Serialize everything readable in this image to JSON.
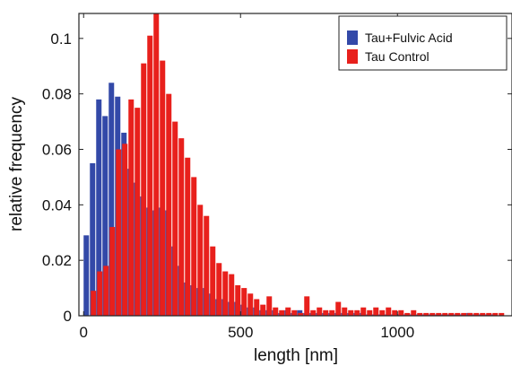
{
  "chart_data": {
    "type": "bar",
    "xlabel": "length [nm]",
    "ylabel": "relative frequency",
    "xlim": [
      -15,
      1365
    ],
    "ylim": [
      0,
      0.109
    ],
    "x_ticks": [
      0,
      500,
      1000
    ],
    "x_tick_labels": [
      "0",
      "500",
      "1000"
    ],
    "y_ticks": [
      0,
      0.02,
      0.04,
      0.06,
      0.08,
      0.1
    ],
    "y_tick_labels": [
      "0",
      "0.02",
      "0.04",
      "0.06",
      "0.08",
      "0.1"
    ],
    "grid": false,
    "legend_position": "top-right",
    "series": [
      {
        "name": "Tau+Fulvic Acid",
        "color": "#3349a8",
        "x": [
          20,
          40,
          60,
          80,
          100,
          120,
          140,
          160,
          180,
          200,
          220,
          240,
          260,
          280,
          300,
          320,
          340,
          360,
          380,
          400,
          420,
          440,
          460,
          480,
          500,
          520,
          540,
          560,
          580,
          600,
          620,
          640,
          660,
          680,
          700,
          720,
          740,
          760,
          780,
          800,
          820,
          840,
          860,
          880,
          900,
          920,
          940,
          960,
          980,
          1000,
          1020,
          1040,
          1060,
          1080,
          1100,
          1120,
          1140,
          1160,
          1180,
          1200,
          1220,
          1240,
          1260,
          1280,
          1300,
          1320
        ],
        "values": [
          0.029,
          0.055,
          0.078,
          0.072,
          0.084,
          0.079,
          0.066,
          0.053,
          0.048,
          0.043,
          0.039,
          0.038,
          0.039,
          0.038,
          0.025,
          0.018,
          0.012,
          0.011,
          0.01,
          0.01,
          0.008,
          0.006,
          0.006,
          0.005,
          0.005,
          0.004,
          0.003,
          0.003,
          0.002,
          0.002,
          0.002,
          0.001,
          0.002,
          0.001,
          0.002,
          0.001,
          0.001,
          0.001,
          0.001,
          0.001,
          0.001,
          0.001,
          0.001,
          0.001,
          0.001,
          0.0005,
          0.0005,
          0.0005,
          0.0005,
          0.0005,
          0.0005,
          0.0005,
          0.0005,
          0.0005,
          0.0005,
          0.0005,
          0.0005,
          0.0005,
          0.0005,
          0.0005,
          0.0005,
          0.001,
          0.0005,
          0.0005,
          0.0005,
          0.0005
        ]
      },
      {
        "name": "Tau Control",
        "color": "#e8201c",
        "x": [
          20,
          40,
          60,
          80,
          100,
          120,
          140,
          160,
          180,
          200,
          220,
          240,
          260,
          280,
          300,
          320,
          340,
          360,
          380,
          400,
          420,
          440,
          460,
          480,
          500,
          520,
          540,
          560,
          580,
          600,
          620,
          640,
          660,
          680,
          700,
          720,
          740,
          760,
          780,
          800,
          820,
          840,
          860,
          880,
          900,
          920,
          940,
          960,
          980,
          1000,
          1020,
          1040,
          1060,
          1080,
          1100,
          1120,
          1140,
          1160,
          1180,
          1200,
          1220,
          1240,
          1260,
          1280,
          1300,
          1320
        ],
        "values": [
          0.009,
          0.016,
          0.018,
          0.032,
          0.06,
          0.062,
          0.078,
          0.075,
          0.091,
          0.101,
          0.109,
          0.092,
          0.08,
          0.07,
          0.064,
          0.057,
          0.05,
          0.04,
          0.036,
          0.025,
          0.019,
          0.016,
          0.015,
          0.011,
          0.01,
          0.008,
          0.006,
          0.004,
          0.007,
          0.003,
          0.002,
          0.003,
          0.002,
          0.001,
          0.007,
          0.002,
          0.003,
          0.002,
          0.002,
          0.005,
          0.003,
          0.002,
          0.002,
          0.003,
          0.002,
          0.003,
          0.002,
          0.003,
          0.002,
          0.002,
          0.001,
          0.002,
          0.001,
          0.001,
          0.001,
          0.001,
          0.001,
          0.001,
          0.001,
          0.001,
          0.001,
          0.001,
          0.001,
          0.001,
          0.001,
          0.001
        ]
      }
    ]
  }
}
